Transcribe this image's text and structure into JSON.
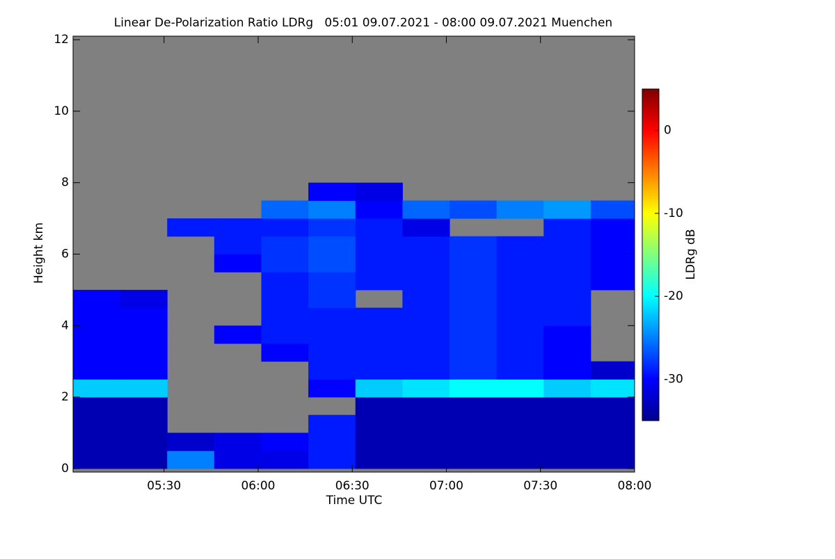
{
  "chart_data": {
    "type": "heatmap",
    "title": "Linear De-Polarization Ratio LDRg   05:01 09.07.2021 - 08:00 09.07.2021 Muenchen",
    "xlabel": "Time UTC",
    "ylabel": "Height km",
    "colorbar_label": "LDRg dB",
    "xlim": [
      301,
      480
    ],
    "xticks": [
      {
        "value": 330,
        "label": "05:30"
      },
      {
        "value": 360,
        "label": "06:00"
      },
      {
        "value": 390,
        "label": "06:30"
      },
      {
        "value": 420,
        "label": "07:00"
      },
      {
        "value": 450,
        "label": "07:30"
      },
      {
        "value": 480,
        "label": "08:00"
      }
    ],
    "ylim": [
      -0.1,
      12.1
    ],
    "yticks": [
      0,
      2,
      4,
      6,
      8,
      10,
      12
    ],
    "clim": [
      -35,
      5
    ],
    "cticks": [
      0,
      -10,
      -20,
      -30
    ],
    "nodata_color": "#808080",
    "x_edges": [
      301,
      316,
      331,
      346,
      361,
      376,
      391,
      406,
      421,
      436,
      451,
      466,
      480
    ],
    "y_edges": [
      0,
      0.5,
      1,
      1.5,
      2,
      2.5,
      3,
      3.5,
      4,
      4.5,
      5,
      5.5,
      6,
      6.5,
      7,
      7.5,
      8
    ],
    "z": [
      [
        -33,
        -33,
        -25,
        -31,
        -31,
        -29,
        -33,
        -33,
        -33,
        -33,
        -33,
        -33
      ],
      [
        -33,
        -33,
        -32,
        -31,
        -30,
        -29,
        -33,
        -33,
        -33,
        -33,
        -33,
        -33
      ],
      [
        -33,
        -33,
        null,
        null,
        null,
        -29,
        -33,
        -33,
        -33,
        -33,
        -33,
        -33
      ],
      [
        -33,
        -33,
        null,
        null,
        null,
        null,
        -33,
        -33,
        -33,
        -33,
        -33,
        -33
      ],
      [
        -22,
        -22,
        null,
        null,
        null,
        -30,
        -22,
        -21,
        -20,
        -20,
        -22,
        -21
      ],
      [
        -30,
        -30,
        null,
        null,
        null,
        -29,
        -29,
        -29,
        -28,
        -29,
        -30,
        -32
      ],
      [
        -30,
        -30,
        null,
        null,
        -30,
        -29,
        -29,
        -29,
        -28,
        -29,
        -30,
        null
      ],
      [
        -30,
        -30,
        null,
        -30,
        -29,
        -29,
        -29,
        -29,
        -28,
        -29,
        -30,
        null
      ],
      [
        -30,
        -30,
        null,
        null,
        -29,
        -29,
        -29,
        -29,
        -28,
        -29,
        -29,
        null
      ],
      [
        -30,
        -31,
        null,
        null,
        -29,
        -28,
        null,
        -29,
        -28,
        -29,
        -29,
        null
      ],
      [
        null,
        null,
        null,
        null,
        -29,
        -28,
        -29,
        -29,
        -28,
        -29,
        -29,
        -30
      ],
      [
        null,
        null,
        null,
        -30,
        -28,
        -27,
        -29,
        -29,
        -28,
        -29,
        -29,
        -30
      ],
      [
        null,
        null,
        null,
        -29,
        -28,
        -27,
        -29,
        -29,
        -28,
        -29,
        -29,
        -30
      ],
      [
        null,
        null,
        -29,
        -29,
        -29,
        -28,
        -29,
        -31,
        null,
        null,
        -29,
        -30
      ],
      [
        null,
        null,
        null,
        null,
        -26,
        -25,
        -30,
        -26,
        -27,
        -25,
        -24,
        -27
      ],
      [
        null,
        null,
        null,
        null,
        null,
        -30,
        -31,
        null,
        null,
        null,
        null,
        null
      ]
    ]
  }
}
